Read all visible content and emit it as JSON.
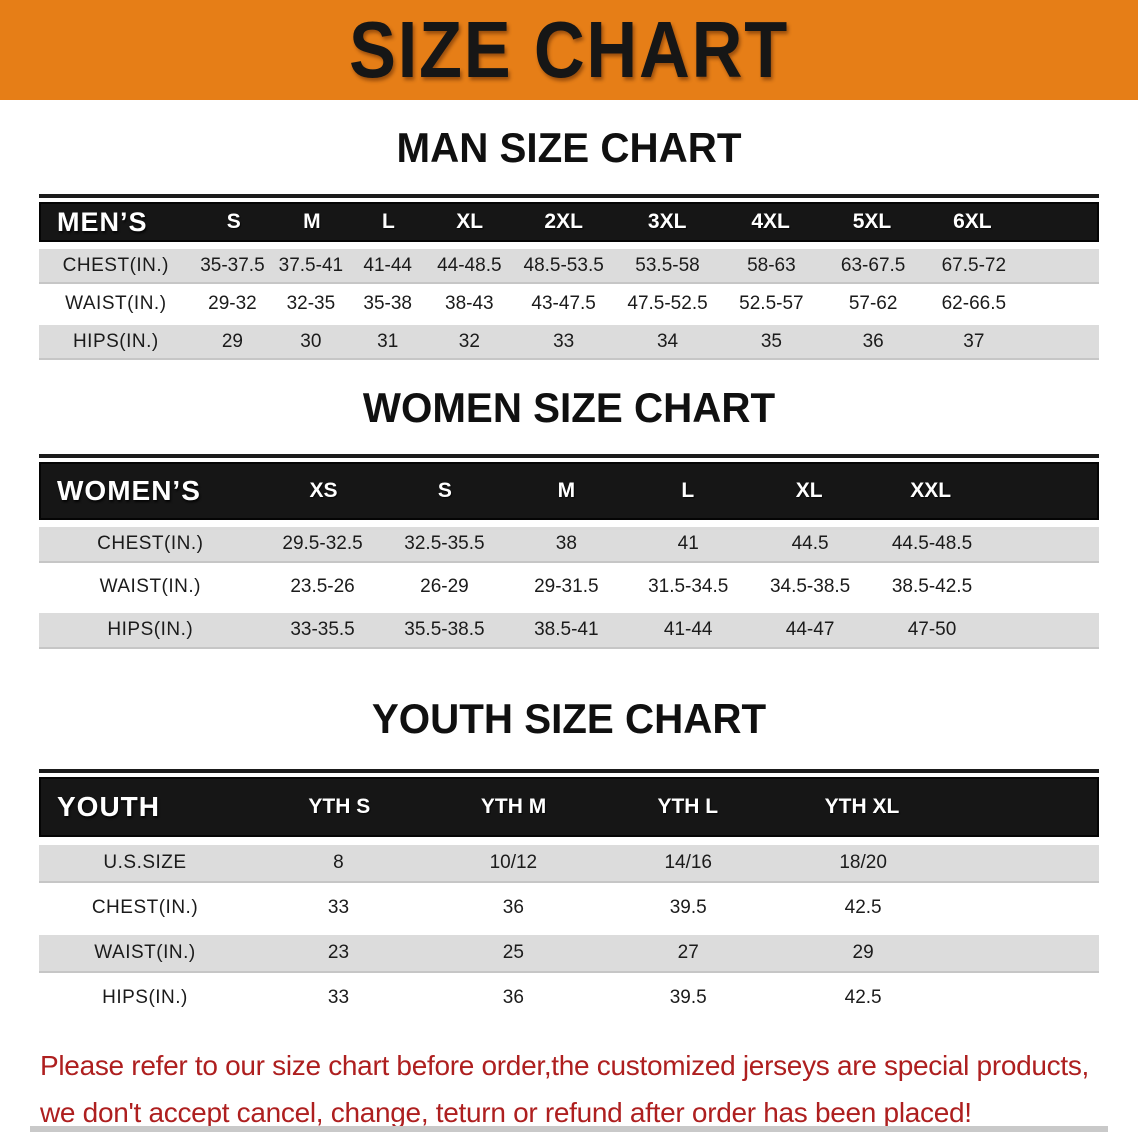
{
  "banner": {
    "title": "SIZE CHART"
  },
  "colors": {
    "banner_bg": "#E67E17",
    "banner_text": "#161616",
    "header_band": "#161616",
    "shaded_row": "#DCDCDC",
    "notice_text": "#AE1F1F"
  },
  "sections": [
    {
      "heading": "MAN SIZE CHART",
      "label": "MEN’S",
      "columns": [
        "S",
        "M",
        "L",
        "XL",
        "2XL",
        "3XL",
        "4XL",
        "5XL",
        "6XL"
      ],
      "rows": [
        {
          "label": "CHEST(IN.)",
          "values": [
            "35-37.5",
            "37.5-41",
            "41-44",
            "44-48.5",
            "48.5-53.5",
            "53.5-58",
            "58-63",
            "63-67.5",
            "67.5-72"
          ]
        },
        {
          "label": "WAIST(IN.)",
          "values": [
            "29-32",
            "32-35",
            "35-38",
            "38-43",
            "43-47.5",
            "47.5-52.5",
            "52.5-57",
            "57-62",
            "62-66.5"
          ]
        },
        {
          "label": "HIPS(IN.)",
          "values": [
            "29",
            "30",
            "31",
            "32",
            "33",
            "34",
            "35",
            "36",
            "37"
          ]
        }
      ]
    },
    {
      "heading": "WOMEN SIZE CHART",
      "label": "WOMEN’S",
      "columns": [
        "XS",
        "S",
        "M",
        "L",
        "XL",
        "XXL"
      ],
      "rows": [
        {
          "label": "CHEST(IN.)",
          "values": [
            "29.5-32.5",
            "32.5-35.5",
            "38",
            "41",
            "44.5",
            "44.5-48.5"
          ]
        },
        {
          "label": "WAIST(IN.)",
          "values": [
            "23.5-26",
            "26-29",
            "29-31.5",
            "31.5-34.5",
            "34.5-38.5",
            "38.5-42.5"
          ]
        },
        {
          "label": "HIPS(IN.)",
          "values": [
            "33-35.5",
            "35.5-38.5",
            "38.5-41",
            "41-44",
            "44-47",
            "47-50"
          ]
        }
      ]
    },
    {
      "heading": "YOUTH SIZE CHART",
      "label": "YOUTH",
      "columns": [
        "YTH S",
        "YTH M",
        "YTH L",
        "YTH XL"
      ],
      "rows": [
        {
          "label": "U.S.SIZE",
          "values": [
            "8",
            "10/12",
            "14/16",
            "18/20"
          ]
        },
        {
          "label": "CHEST(IN.)",
          "values": [
            "33",
            "36",
            "39.5",
            "42.5"
          ]
        },
        {
          "label": "WAIST(IN.)",
          "values": [
            "23",
            "25",
            "27",
            "29"
          ]
        },
        {
          "label": "HIPS(IN.)",
          "values": [
            "33",
            "36",
            "39.5",
            "42.5"
          ]
        }
      ]
    }
  ],
  "footer": {
    "line1": "Please refer to our size chart before order,the customized jerseys are special products,",
    "line2": "we don't accept cancel, change, teturn or refund after order has been placed!"
  }
}
